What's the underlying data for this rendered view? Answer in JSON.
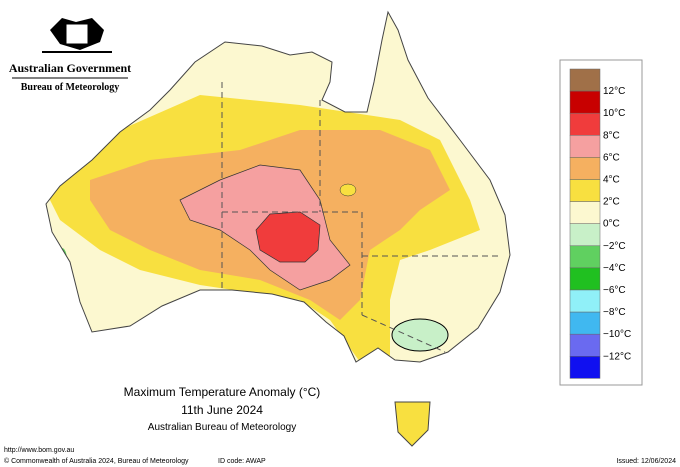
{
  "header": {
    "government": "Australian Government",
    "agency": "Bureau of Meteorology"
  },
  "map": {
    "title": "Maximum Temperature Anomaly (°C)",
    "date": "11th June 2024",
    "source": "Australian Bureau of Meteorology"
  },
  "legend": {
    "colors": [
      "#a07048",
      "#c80000",
      "#f03c3c",
      "#f5a0a0",
      "#f5b060",
      "#f8e040",
      "#fcf8d0",
      "#c8f0c8",
      "#60d060",
      "#20c020",
      "#90f0f8",
      "#40b8f0",
      "#6a6af0",
      "#1010f0"
    ],
    "labels": [
      "12°C",
      "10°C",
      "8°C",
      "6°C",
      "4°C",
      "2°C",
      "0°C",
      "−2°C",
      "−4°C",
      "−6°C",
      "−8°C",
      "−10°C",
      "−12°C"
    ]
  },
  "footer": {
    "url": "http://www.bom.gov.au",
    "copyright": "© Commonwealth of Australia 2024, Bureau of Meteorology",
    "id_code": "ID code: AWAP",
    "issued": "Issued: 12/06/2024"
  }
}
